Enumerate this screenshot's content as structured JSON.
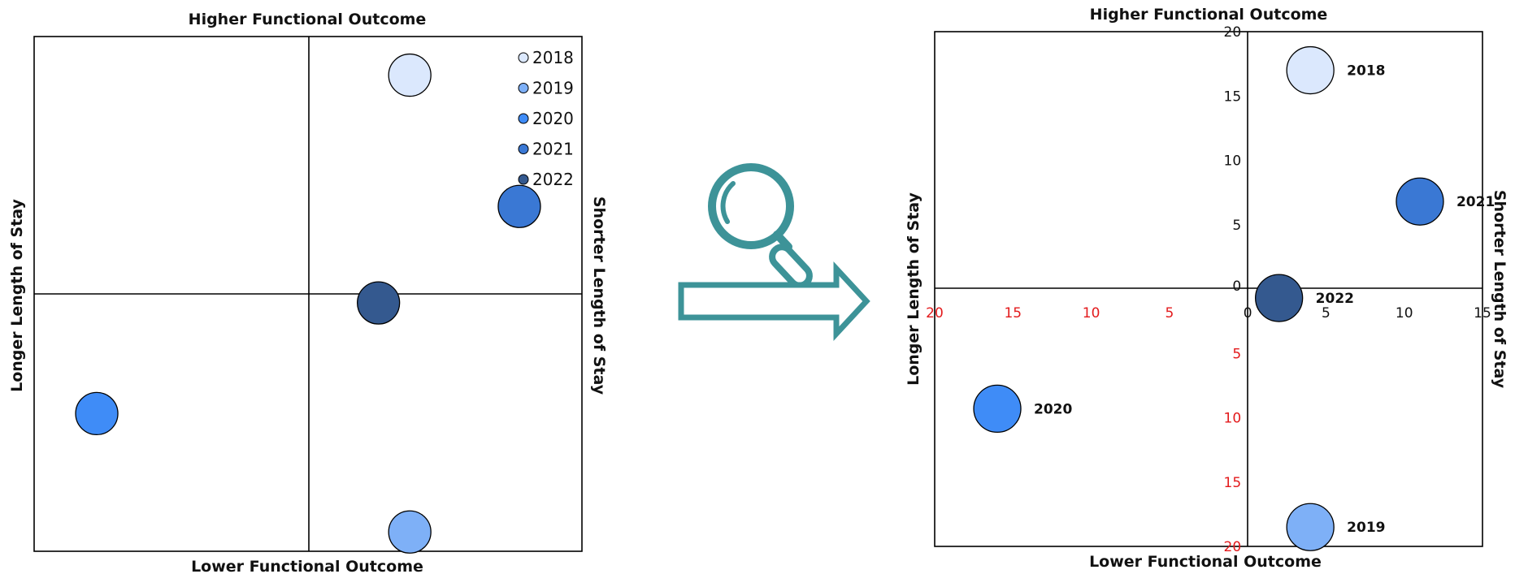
{
  "colors": {
    "2018": "#dbe8fd",
    "2019": "#7eb0f7",
    "2020": "#3f8cf7",
    "2021": "#3a78d4",
    "2022": "#34598f",
    "arrow": "#3d9398",
    "tick_pos": "#111111",
    "tick_neg": "#e31a1c"
  },
  "icons": {
    "magnifier": "magnifier-icon",
    "arrow": "right-arrow-icon"
  },
  "chart_data": [
    {
      "type": "scatter",
      "title": "Higher Functional Outcome",
      "xlabel": "Lower Functional Outcome",
      "ylabel": "Longer Length of Stay",
      "ylabel_right": "Shorter Length of Stay",
      "xlim": [
        -20,
        15
      ],
      "ylim": [
        -20,
        20
      ],
      "grid": false,
      "axis_ticks_shown": false,
      "legend": {
        "placement": "top-right",
        "entries": [
          "2018",
          "2019",
          "2020",
          "2021",
          "2022"
        ]
      },
      "series": [
        {
          "name": "2018",
          "x": 4,
          "y": 17
        },
        {
          "name": "2019",
          "x": 4,
          "y": -18.5
        },
        {
          "name": "2020",
          "x": -16,
          "y": -9.3
        },
        {
          "name": "2021",
          "x": 11,
          "y": 6.8
        },
        {
          "name": "2022",
          "x": 2,
          "y": -0.7
        }
      ]
    },
    {
      "type": "scatter",
      "title": "Higher Functional Outcome",
      "xlabel": "Lower Functional Outcome",
      "ylabel": "Longer Length of Stay",
      "ylabel_right": "Shorter Length of Stay",
      "xlim": [
        -20,
        15
      ],
      "ylim": [
        -20,
        20
      ],
      "grid": false,
      "x_ticks": [
        "20",
        "15",
        "10",
        "5",
        "0",
        "5",
        "10",
        "15"
      ],
      "x_tick_values": [
        -20,
        -15,
        -10,
        -5,
        0,
        5,
        10,
        15
      ],
      "y_ticks": [
        "20",
        "15",
        "10",
        "5",
        "0",
        "5",
        "10",
        "15",
        "20"
      ],
      "y_tick_values": [
        20,
        15,
        10,
        5,
        0,
        -5,
        -10,
        -15,
        -20
      ],
      "point_labels_shown": true,
      "series": [
        {
          "name": "2018",
          "x": 4,
          "y": 17
        },
        {
          "name": "2019",
          "x": 4,
          "y": -18.5
        },
        {
          "name": "2020",
          "x": -16,
          "y": -9.3
        },
        {
          "name": "2021",
          "x": 11,
          "y": 6.8
        },
        {
          "name": "2022",
          "x": 2,
          "y": -0.7
        }
      ]
    }
  ]
}
